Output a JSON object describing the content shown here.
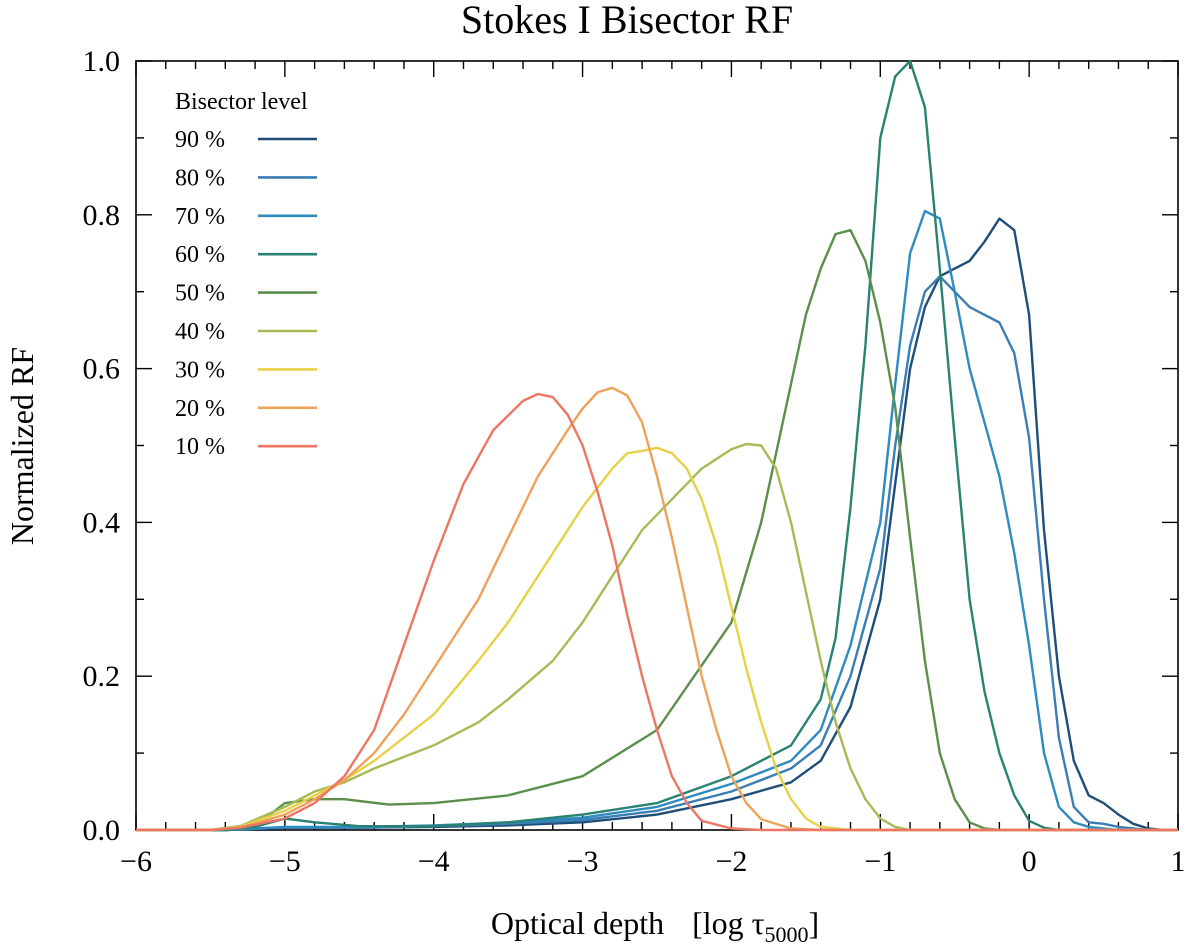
{
  "chart_data": {
    "type": "line",
    "title": "Stokes I Bisector RF",
    "xlabel_main": "Optical depth",
    "xlabel_unit_prefix": "[log τ",
    "xlabel_unit_sub": "5000",
    "xlabel_unit_suffix": "]",
    "ylabel": "Normalized RF",
    "xlim": [
      -6,
      1
    ],
    "ylim": [
      0,
      1
    ],
    "xticks": [
      -6,
      -5,
      -4,
      -3,
      -2,
      -1,
      0,
      1
    ],
    "xtick_labels": [
      "−6",
      "−5",
      "−4",
      "−3",
      "−2",
      "−1",
      "0",
      "1"
    ],
    "yticks": [
      0,
      0.2,
      0.4,
      0.6,
      0.8,
      1.0
    ],
    "ytick_labels": [
      "0.0",
      "0.2",
      "0.4",
      "0.6",
      "0.8",
      "1.0"
    ],
    "legend_title": "Bisector level",
    "legend_position": "top-left",
    "grid": false,
    "series": [
      {
        "name": "90 %",
        "color": "#1f4e79",
        "x": [
          -6.0,
          -5.4,
          -5.0,
          -4.5,
          -4.0,
          -3.5,
          -3.0,
          -2.5,
          -2.0,
          -1.6,
          -1.4,
          -1.2,
          -1.0,
          -0.9,
          -0.8,
          -0.7,
          -0.6,
          -0.5,
          -0.4,
          -0.3,
          -0.2,
          -0.1,
          0.0,
          0.1,
          0.2,
          0.3,
          0.4,
          0.5,
          0.6,
          0.7,
          0.8,
          0.9,
          1.0
        ],
        "y": [
          0,
          0,
          0.003,
          0.003,
          0.004,
          0.006,
          0.01,
          0.02,
          0.04,
          0.062,
          0.09,
          0.16,
          0.3,
          0.45,
          0.6,
          0.68,
          0.72,
          0.73,
          0.74,
          0.765,
          0.795,
          0.78,
          0.67,
          0.39,
          0.2,
          0.09,
          0.045,
          0.035,
          0.02,
          0.008,
          0.002,
          0,
          0
        ]
      },
      {
        "name": "80 %",
        "color": "#3a7eb3",
        "x": [
          -6.0,
          -5.4,
          -5.0,
          -4.5,
          -4.0,
          -3.5,
          -3.0,
          -2.5,
          -2.0,
          -1.6,
          -1.4,
          -1.2,
          -1.0,
          -0.9,
          -0.8,
          -0.7,
          -0.6,
          -0.5,
          -0.4,
          -0.3,
          -0.2,
          -0.1,
          0.0,
          0.1,
          0.2,
          0.3,
          0.4,
          0.5,
          0.6,
          0.7,
          0.8,
          0.9,
          1.0
        ],
        "y": [
          0,
          0,
          0.003,
          0.003,
          0.005,
          0.008,
          0.013,
          0.025,
          0.05,
          0.08,
          0.11,
          0.2,
          0.34,
          0.5,
          0.63,
          0.7,
          0.72,
          0.7,
          0.68,
          0.67,
          0.66,
          0.62,
          0.51,
          0.3,
          0.12,
          0.03,
          0.01,
          0.008,
          0.004,
          0.002,
          0,
          0,
          0
        ]
      },
      {
        "name": "70 %",
        "color": "#2e8bc0",
        "x": [
          -6.0,
          -5.4,
          -5.0,
          -4.5,
          -4.0,
          -3.5,
          -3.0,
          -2.5,
          -2.0,
          -1.6,
          -1.4,
          -1.2,
          -1.0,
          -0.9,
          -0.8,
          -0.7,
          -0.6,
          -0.5,
          -0.4,
          -0.3,
          -0.2,
          -0.1,
          0.0,
          0.1,
          0.2,
          0.3,
          0.4,
          0.5,
          0.6,
          0.7,
          0.8,
          0.9,
          1.0
        ],
        "y": [
          0,
          0,
          0.004,
          0.004,
          0.006,
          0.01,
          0.016,
          0.03,
          0.06,
          0.09,
          0.13,
          0.24,
          0.4,
          0.58,
          0.75,
          0.805,
          0.795,
          0.7,
          0.6,
          0.53,
          0.46,
          0.36,
          0.24,
          0.1,
          0.03,
          0.01,
          0.004,
          0.002,
          0,
          0,
          0,
          0,
          0
        ]
      },
      {
        "name": "60 %",
        "color": "#2a8272",
        "x": [
          -6.0,
          -5.4,
          -5.2,
          -5.0,
          -4.8,
          -4.5,
          -4.0,
          -3.5,
          -3.0,
          -2.5,
          -2.0,
          -1.6,
          -1.4,
          -1.3,
          -1.2,
          -1.1,
          -1.0,
          -0.9,
          -0.8,
          -0.7,
          -0.6,
          -0.5,
          -0.4,
          -0.3,
          -0.2,
          -0.1,
          0.0,
          0.1,
          0.2,
          0.4,
          0.6,
          1.0
        ],
        "y": [
          0,
          0,
          0.004,
          0.015,
          0.01,
          0.005,
          0.005,
          0.01,
          0.02,
          0.035,
          0.07,
          0.11,
          0.17,
          0.25,
          0.42,
          0.63,
          0.9,
          0.98,
          1.0,
          0.94,
          0.73,
          0.51,
          0.3,
          0.18,
          0.1,
          0.045,
          0.012,
          0.003,
          0,
          0,
          0,
          0
        ]
      },
      {
        "name": "50 %",
        "color": "#5a8f4c",
        "x": [
          -6.0,
          -5.5,
          -5.3,
          -5.1,
          -5.0,
          -4.8,
          -4.6,
          -4.3,
          -4.0,
          -3.5,
          -3.0,
          -2.5,
          -2.0,
          -1.8,
          -1.6,
          -1.5,
          -1.4,
          -1.3,
          -1.2,
          -1.1,
          -1.0,
          -0.9,
          -0.8,
          -0.7,
          -0.6,
          -0.5,
          -0.4,
          -0.3,
          -0.2,
          0.0,
          0.5,
          1.0
        ],
        "y": [
          0,
          0,
          0.005,
          0.02,
          0.035,
          0.04,
          0.04,
          0.033,
          0.035,
          0.045,
          0.07,
          0.13,
          0.27,
          0.4,
          0.58,
          0.67,
          0.73,
          0.775,
          0.78,
          0.74,
          0.66,
          0.55,
          0.38,
          0.22,
          0.1,
          0.04,
          0.01,
          0.002,
          0,
          0,
          0,
          0
        ]
      },
      {
        "name": "40 %",
        "color": "#a7ba55",
        "x": [
          -6.0,
          -5.5,
          -5.3,
          -5.0,
          -4.8,
          -4.6,
          -4.4,
          -4.2,
          -4.0,
          -3.7,
          -3.5,
          -3.2,
          -3.0,
          -2.8,
          -2.6,
          -2.4,
          -2.2,
          -2.0,
          -1.9,
          -1.8,
          -1.7,
          -1.6,
          -1.5,
          -1.4,
          -1.3,
          -1.2,
          -1.1,
          -1.0,
          -0.9,
          -0.8,
          -0.5,
          1.0
        ],
        "y": [
          0,
          0,
          0.005,
          0.03,
          0.05,
          0.062,
          0.08,
          0.095,
          0.11,
          0.14,
          0.17,
          0.22,
          0.27,
          0.33,
          0.39,
          0.43,
          0.47,
          0.495,
          0.502,
          0.5,
          0.47,
          0.4,
          0.31,
          0.22,
          0.14,
          0.08,
          0.04,
          0.015,
          0.004,
          0,
          0,
          0
        ]
      },
      {
        "name": "30 %",
        "color": "#e8d147",
        "x": [
          -6.0,
          -5.5,
          -5.3,
          -5.0,
          -4.8,
          -4.6,
          -4.4,
          -4.2,
          -4.0,
          -3.7,
          -3.5,
          -3.2,
          -3.0,
          -2.8,
          -2.7,
          -2.6,
          -2.5,
          -2.4,
          -2.3,
          -2.2,
          -2.1,
          -2.0,
          -1.9,
          -1.8,
          -1.7,
          -1.6,
          -1.5,
          -1.4,
          -1.2,
          -1.0,
          1.0
        ],
        "y": [
          0,
          0,
          0.004,
          0.025,
          0.045,
          0.065,
          0.09,
          0.12,
          0.15,
          0.22,
          0.27,
          0.36,
          0.42,
          0.47,
          0.49,
          0.493,
          0.497,
          0.49,
          0.47,
          0.43,
          0.37,
          0.29,
          0.21,
          0.14,
          0.08,
          0.04,
          0.015,
          0.004,
          0,
          0,
          0
        ]
      },
      {
        "name": "20 %",
        "color": "#eda25a",
        "x": [
          -6.0,
          -5.5,
          -5.3,
          -5.0,
          -4.8,
          -4.6,
          -4.4,
          -4.2,
          -4.0,
          -3.7,
          -3.5,
          -3.3,
          -3.1,
          -3.0,
          -2.9,
          -2.8,
          -2.7,
          -2.6,
          -2.5,
          -2.4,
          -2.3,
          -2.2,
          -2.1,
          -2.0,
          -1.9,
          -1.8,
          -1.6,
          -1.4,
          1.0
        ],
        "y": [
          0,
          0,
          0.003,
          0.02,
          0.04,
          0.065,
          0.1,
          0.15,
          0.21,
          0.3,
          0.38,
          0.46,
          0.52,
          0.548,
          0.569,
          0.575,
          0.565,
          0.53,
          0.46,
          0.38,
          0.29,
          0.2,
          0.13,
          0.07,
          0.035,
          0.014,
          0.002,
          0,
          0
        ]
      },
      {
        "name": "10 %",
        "color": "#ec7563",
        "x": [
          -6.0,
          -5.5,
          -5.3,
          -5.0,
          -4.8,
          -4.6,
          -4.4,
          -4.2,
          -4.0,
          -3.8,
          -3.6,
          -3.4,
          -3.3,
          -3.2,
          -3.1,
          -3.0,
          -2.9,
          -2.8,
          -2.7,
          -2.6,
          -2.5,
          -2.4,
          -2.3,
          -2.2,
          -2.0,
          -1.8,
          1.0
        ],
        "y": [
          0,
          0,
          0.003,
          0.015,
          0.035,
          0.07,
          0.13,
          0.24,
          0.35,
          0.45,
          0.52,
          0.558,
          0.567,
          0.563,
          0.54,
          0.5,
          0.44,
          0.37,
          0.28,
          0.2,
          0.13,
          0.07,
          0.035,
          0.012,
          0.002,
          0,
          0
        ]
      }
    ]
  }
}
